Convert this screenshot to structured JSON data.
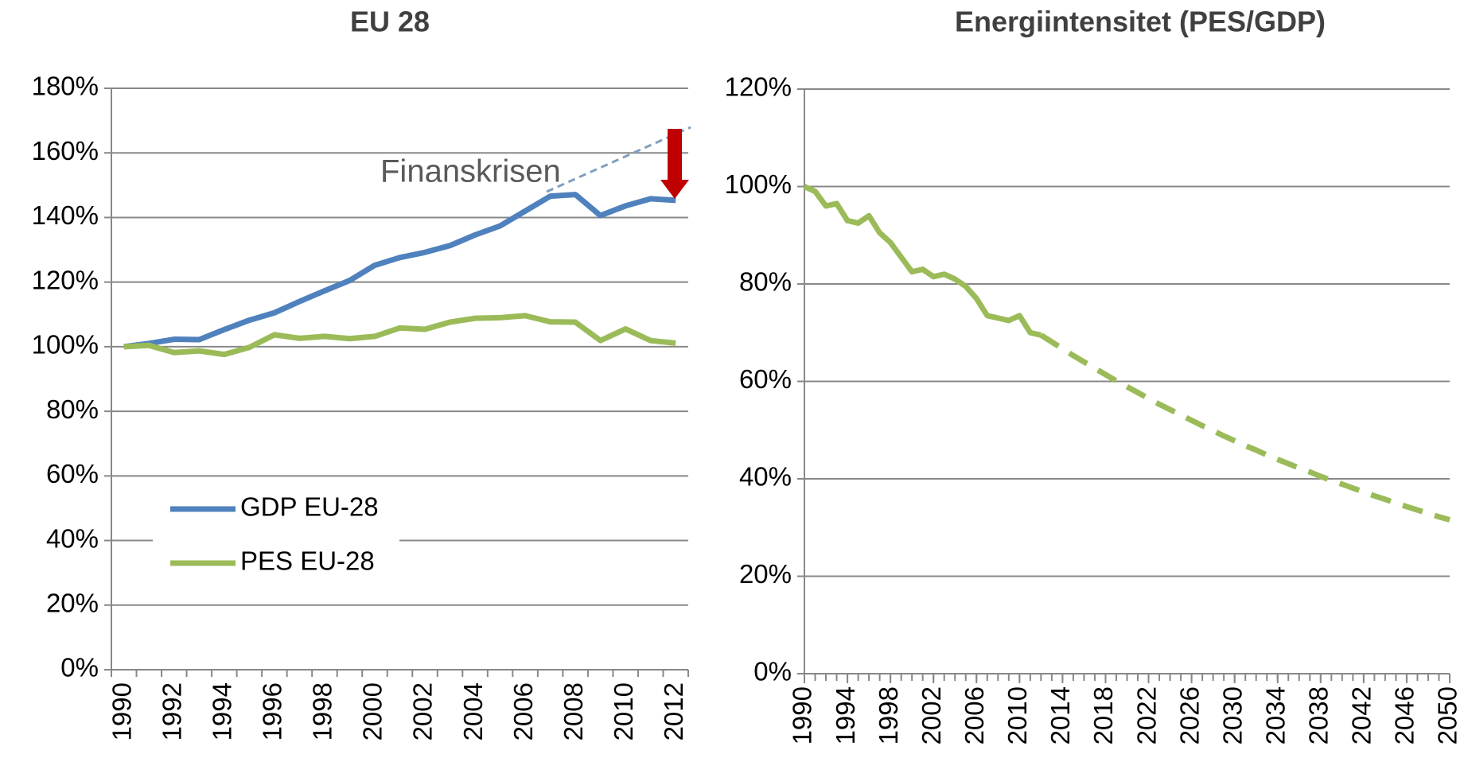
{
  "chart_data": [
    {
      "type": "line",
      "title": "EU 28",
      "categories": [
        "1990",
        null,
        "1992",
        null,
        "1994",
        null,
        "1996",
        null,
        "1998",
        null,
        "2000",
        null,
        "2002",
        null,
        "2004",
        null,
        "2006",
        null,
        "2008",
        null,
        "2010",
        null,
        "2012"
      ],
      "series": [
        {
          "name": "GDP EU-28",
          "color": "#4f81bd",
          "values": [
            100,
            101,
            102.3,
            102.2,
            105.3,
            108.2,
            110.5,
            114,
            117.3,
            120.5,
            125.2,
            127.6,
            129.2,
            131.3,
            134.6,
            137.4,
            142,
            146.6,
            147.1,
            140.6,
            143.6,
            145.8,
            145.3
          ]
        },
        {
          "name": "PES EU-28",
          "color": "#9bbb59",
          "values": [
            100,
            100.4,
            98.2,
            98.7,
            97.6,
            99.8,
            103.7,
            102.6,
            103.2,
            102.5,
            103.2,
            105.8,
            105.4,
            107.6,
            108.8,
            109,
            109.6,
            107.7,
            107.6,
            101.9,
            105.5,
            101.9,
            101.1
          ]
        }
      ],
      "ylim": [
        0,
        180
      ],
      "yticks": [
        {
          "value": 0,
          "label": "0%"
        },
        {
          "value": 20,
          "label": "20%"
        },
        {
          "value": 40,
          "label": "40%"
        },
        {
          "value": 60,
          "label": "60%"
        },
        {
          "value": 80,
          "label": "80%"
        },
        {
          "value": 100,
          "label": "100%"
        },
        {
          "value": 120,
          "label": "120%"
        },
        {
          "value": 140,
          "label": "140%"
        },
        {
          "value": 160,
          "label": "160%"
        },
        {
          "value": 180,
          "label": "180%"
        }
      ],
      "grid": true,
      "legend": "lower left",
      "annotations": [
        "Finanskrisen"
      ]
    },
    {
      "type": "line",
      "title": "Energiintensitet (PES/GDP)",
      "x": [
        1990,
        1991,
        1992,
        1993,
        1994,
        1995,
        1996,
        1997,
        1998,
        1999,
        2000,
        2001,
        2002,
        2003,
        2004,
        2005,
        2006,
        2007,
        2008,
        2009,
        2010,
        2011,
        2012,
        2013,
        2014,
        2015,
        2016,
        2017,
        2018,
        2019,
        2020,
        2021,
        2022,
        2023,
        2024,
        2025,
        2026,
        2027,
        2028,
        2029,
        2030,
        2031,
        2032,
        2033,
        2034,
        2035,
        2036,
        2037,
        2038,
        2039,
        2040,
        2041,
        2042,
        2043,
        2044,
        2045,
        2046,
        2047,
        2048,
        2049,
        2050
      ],
      "series": [
        {
          "color": "#9bbb59",
          "line_style": "solid",
          "values": [
            100,
            99,
            96,
            96.5,
            93,
            92.5,
            94,
            90.5,
            88.5,
            85.5,
            82.5,
            83,
            81.5,
            82,
            81,
            79.5,
            77,
            73.5,
            73,
            72.5,
            73.5,
            70,
            69.5,
            null,
            null,
            null,
            null,
            null,
            null,
            null,
            null,
            null,
            null,
            null,
            null,
            null,
            null,
            null,
            null,
            null,
            null,
            null,
            null,
            null,
            null,
            null,
            null,
            null,
            null,
            null,
            null,
            null,
            null,
            null,
            null,
            null,
            null,
            null,
            null,
            null,
            null
          ]
        },
        {
          "color": "#9bbb59",
          "line_style": "dashed",
          "values": [
            null,
            null,
            null,
            null,
            null,
            null,
            null,
            null,
            null,
            null,
            null,
            null,
            null,
            null,
            null,
            null,
            null,
            null,
            null,
            null,
            null,
            null,
            69.5,
            68.1,
            66.7,
            65.3,
            64.0,
            62.7,
            61.4,
            60.1,
            58.9,
            57.7,
            56.5,
            55.3,
            54.2,
            53.1,
            52.0,
            50.9,
            49.9,
            48.8,
            47.8,
            46.8,
            45.9,
            44.9,
            44.0,
            43.1,
            42.2,
            41.4,
            40.5,
            39.7,
            38.9,
            38.1,
            37.3,
            36.5,
            35.8,
            35.0,
            34.3,
            33.6,
            32.9,
            32.2,
            31.6
          ]
        }
      ],
      "xlim": [
        1990,
        2050
      ],
      "xticks": [
        1990,
        1994,
        1998,
        2002,
        2006,
        2010,
        2014,
        2018,
        2022,
        2026,
        2030,
        2034,
        2038,
        2042,
        2046,
        2050
      ],
      "ylim": [
        0,
        120
      ],
      "yticks": [
        {
          "value": 0,
          "label": "0%"
        },
        {
          "value": 20,
          "label": "20%"
        },
        {
          "value": 40,
          "label": "40%"
        },
        {
          "value": 60,
          "label": "60%"
        },
        {
          "value": 80,
          "label": "80%"
        },
        {
          "value": 100,
          "label": "100%"
        },
        {
          "value": 120,
          "label": "120%"
        }
      ],
      "grid": true
    }
  ]
}
